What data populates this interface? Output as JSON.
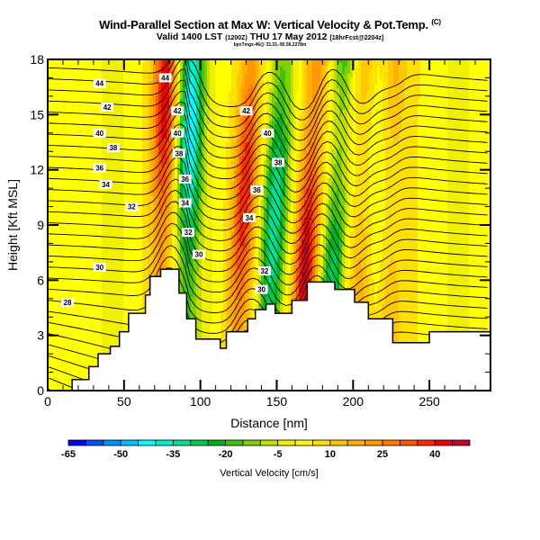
{
  "header": {
    "title": "Wind-Parallel Section at Max W: Vertical Velocity & Pot.Temp.",
    "copyright": "(C)",
    "valid_prefix": "Valid 1400 LST",
    "valid_zulu": "(1200Z)",
    "valid_date": "THU 17 May 2012",
    "forecast_info": "[18hrFcst@2204z]",
    "location": "bpxTmgx-46@ 33.33,-90.56,2278m"
  },
  "chart_data": {
    "type": "heatmap",
    "title": "Wind-Parallel Section at Max W: Vertical Velocity & Pot.Temp.",
    "xlabel": "Distance [nm]",
    "ylabel": "Height [Kft MSL]",
    "xlim": [
      0,
      290
    ],
    "ylim": [
      0,
      18
    ],
    "x_ticks": [
      "0",
      "50",
      "100",
      "150",
      "200",
      "250"
    ],
    "x_tick_values": [
      0,
      50,
      100,
      150,
      200,
      250
    ],
    "y_ticks": [
      "0",
      "3",
      "6",
      "9",
      "12",
      "15",
      "18"
    ],
    "y_tick_values": [
      0,
      3,
      6,
      9,
      12,
      15,
      18
    ],
    "colorbar": {
      "label": "Vertical Velocity [cm/s]",
      "tick_labels": [
        "-65",
        "-50",
        "-35",
        "-20",
        "-5",
        "10",
        "25",
        "40"
      ],
      "tick_values": [
        -65,
        -50,
        -35,
        -20,
        -5,
        10,
        25,
        40
      ],
      "levels": [
        -65,
        -60,
        -55,
        -50,
        -45,
        -40,
        -35,
        -30,
        -25,
        -20,
        -15,
        -10,
        -5,
        0,
        5,
        10,
        15,
        20,
        25,
        30,
        35,
        40,
        45,
        50
      ],
      "colors": [
        "#0000ff",
        "#0050ff",
        "#0090ff",
        "#00c0ff",
        "#00ffff",
        "#00f0c8",
        "#00e090",
        "#00c850",
        "#00b020",
        "#40c010",
        "#80d000",
        "#c0e000",
        "#f0f000",
        "#ffff00",
        "#ffe000",
        "#ffc800",
        "#ffb000",
        "#ff9800",
        "#ff7800",
        "#ff5800",
        "#ff2800",
        "#f00000",
        "#c80028"
      ]
    },
    "contour_variable": "Potential Temperature",
    "contour_labels": [
      {
        "value": "44",
        "x": 34,
        "y": 16.7
      },
      {
        "value": "42",
        "x": 39,
        "y": 15.4
      },
      {
        "value": "40",
        "x": 34,
        "y": 14.0
      },
      {
        "value": "38",
        "x": 43,
        "y": 13.2
      },
      {
        "value": "36",
        "x": 34,
        "y": 12.1
      },
      {
        "value": "34",
        "x": 38,
        "y": 11.2
      },
      {
        "value": "32",
        "x": 55,
        "y": 10.0
      },
      {
        "value": "30",
        "x": 34,
        "y": 6.7
      },
      {
        "value": "28",
        "x": 13,
        "y": 4.8
      },
      {
        "value": "44",
        "x": 77,
        "y": 17.0
      },
      {
        "value": "42",
        "x": 85,
        "y": 15.2
      },
      {
        "value": "40",
        "x": 85,
        "y": 14.0
      },
      {
        "value": "38",
        "x": 86,
        "y": 12.9
      },
      {
        "value": "36",
        "x": 90,
        "y": 11.5
      },
      {
        "value": "34",
        "x": 90,
        "y": 10.2
      },
      {
        "value": "32",
        "x": 92,
        "y": 8.6
      },
      {
        "value": "30",
        "x": 99,
        "y": 7.4
      },
      {
        "value": "42",
        "x": 130,
        "y": 15.2
      },
      {
        "value": "40",
        "x": 144,
        "y": 14.0
      },
      {
        "value": "38",
        "x": 151,
        "y": 12.4
      },
      {
        "value": "36",
        "x": 137,
        "y": 10.9
      },
      {
        "value": "34",
        "x": 132,
        "y": 9.4
      },
      {
        "value": "32",
        "x": 142,
        "y": 6.5
      },
      {
        "value": "30",
        "x": 140,
        "y": 5.5
      }
    ],
    "terrain_profile": {
      "x": [
        0,
        16,
        16,
        27,
        27,
        33,
        33,
        41,
        41,
        47,
        47,
        53,
        53,
        64,
        64,
        67,
        67,
        74,
        74,
        86,
        86,
        91,
        91,
        97,
        97,
        113,
        113,
        117,
        117,
        131,
        131,
        136,
        136,
        143,
        143,
        149,
        149,
        160,
        160,
        170,
        170,
        188,
        188,
        201,
        201,
        210,
        210,
        226,
        226,
        250,
        250,
        275,
        275,
        290
      ],
      "y": [
        0,
        0,
        0.6,
        0.6,
        1.3,
        1.3,
        2.0,
        2.0,
        2.4,
        2.4,
        3.2,
        3.2,
        4.2,
        4.2,
        5.2,
        5.2,
        6.2,
        6.2,
        6.6,
        6.6,
        5.3,
        5.3,
        3.9,
        3.9,
        2.8,
        2.8,
        2.3,
        2.3,
        3.2,
        3.2,
        3.9,
        3.9,
        4.4,
        4.4,
        4.7,
        4.7,
        4.2,
        4.2,
        4.9,
        4.9,
        5.9,
        5.9,
        5.5,
        5.5,
        4.8,
        4.8,
        3.9,
        3.9,
        2.6,
        2.6,
        3.2,
        3.2,
        3.2,
        3.2
      ]
    },
    "velocity_bands": [
      {
        "x": 75,
        "w": 40
      },
      {
        "x": 92,
        "w": -45
      },
      {
        "x": 128,
        "w": 35
      },
      {
        "x": 148,
        "w": -35
      },
      {
        "x": 170,
        "w": 45
      },
      {
        "x": 188,
        "w": -35
      },
      {
        "x": 205,
        "w": 20
      },
      {
        "x": 225,
        "w": 15
      }
    ]
  }
}
